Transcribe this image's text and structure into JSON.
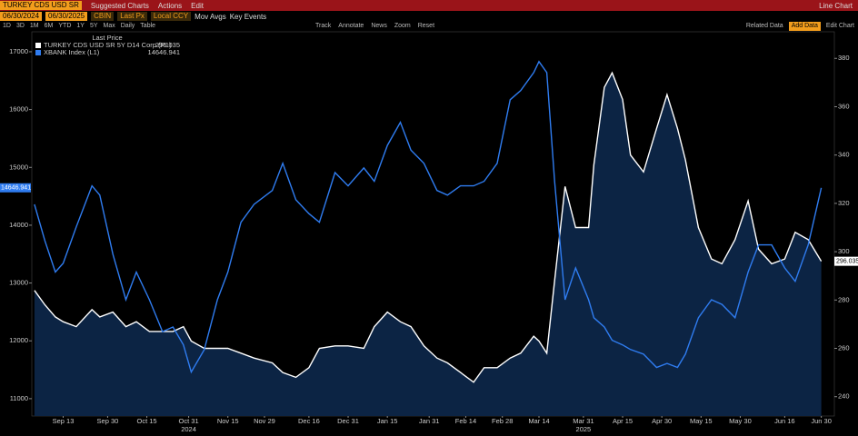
{
  "toolbar": {
    "ticker": "TURKEY CDS USD SR",
    "menus": [
      "Suggested Charts",
      "Actions",
      "Edit"
    ],
    "chart_kind": "Line Chart",
    "start_date": "06/30/2024",
    "end_date": "06/30/2025",
    "source": "CBIN",
    "field": "Last Px",
    "currency": "Local CCY",
    "options": [
      "Mov Avgs",
      "Key Events"
    ],
    "periods": [
      "1D",
      "3D",
      "1M",
      "6M",
      "YTD",
      "1Y",
      "5Y",
      "Max"
    ],
    "frequency": "Daily",
    "table": "Table",
    "tools": [
      "Track",
      "Annotate",
      "News",
      "Zoom"
    ],
    "reset": "Reset",
    "related": "Related Data",
    "add_data": "Add Data",
    "edit_chart": "Edit Chart"
  },
  "chart_data": {
    "type": "line",
    "legend_header": "Last Price",
    "grid": false,
    "x": [
      "2024-09-02",
      "2024-09-06",
      "2024-09-10",
      "2024-09-13",
      "2024-09-18",
      "2024-09-24",
      "2024-09-27",
      "2024-10-02",
      "2024-10-07",
      "2024-10-11",
      "2024-10-16",
      "2024-10-21",
      "2024-10-25",
      "2024-10-29",
      "2024-11-01",
      "2024-11-06",
      "2024-11-11",
      "2024-11-15",
      "2024-11-20",
      "2024-11-25",
      "2024-12-02",
      "2024-12-06",
      "2024-12-11",
      "2024-12-16",
      "2024-12-20",
      "2024-12-26",
      "2024-12-31",
      "2025-01-06",
      "2025-01-10",
      "2025-01-15",
      "2025-01-20",
      "2025-01-24",
      "2025-01-29",
      "2025-02-03",
      "2025-02-07",
      "2025-02-12",
      "2025-02-17",
      "2025-02-21",
      "2025-02-26",
      "2025-03-03",
      "2025-03-07",
      "2025-03-12",
      "2025-03-14",
      "2025-03-17",
      "2025-03-20",
      "2025-03-24",
      "2025-03-28",
      "2025-04-02",
      "2025-04-04",
      "2025-04-08",
      "2025-04-11",
      "2025-04-15",
      "2025-04-18",
      "2025-04-23",
      "2025-04-28",
      "2025-05-02",
      "2025-05-06",
      "2025-05-09",
      "2025-05-14",
      "2025-05-19",
      "2025-05-23",
      "2025-05-28",
      "2025-06-02",
      "2025-06-06",
      "2025-06-11",
      "2025-06-16",
      "2025-06-20",
      "2025-06-25",
      "2025-06-30"
    ],
    "xlim": [
      "2024-09-01",
      "2025-07-05"
    ],
    "xticks": [
      {
        "value": "2024-09-13",
        "label": "Sep 13"
      },
      {
        "value": "2024-09-30",
        "label": "Sep 30"
      },
      {
        "value": "2024-10-15",
        "label": "Oct 15"
      },
      {
        "value": "2024-10-31",
        "label": "Oct 31"
      },
      {
        "value": "2024-11-15",
        "label": "Nov 15"
      },
      {
        "value": "2024-11-29",
        "label": "Nov 29"
      },
      {
        "value": "2024-12-16",
        "label": "Dec 16"
      },
      {
        "value": "2024-12-31",
        "label": "Dec 31"
      },
      {
        "value": "2025-01-15",
        "label": "Jan 15"
      },
      {
        "value": "2025-01-31",
        "label": "Jan 31"
      },
      {
        "value": "2025-02-14",
        "label": "Feb 14"
      },
      {
        "value": "2025-02-28",
        "label": "Feb 28"
      },
      {
        "value": "2025-03-14",
        "label": "Mar 14"
      },
      {
        "value": "2025-03-31",
        "label": "Mar 31"
      },
      {
        "value": "2025-04-15",
        "label": "Apr 15"
      },
      {
        "value": "2025-04-30",
        "label": "Apr 30"
      },
      {
        "value": "2025-05-15",
        "label": "May 15"
      },
      {
        "value": "2025-05-30",
        "label": "May 30"
      },
      {
        "value": "2025-06-16",
        "label": "Jun 16"
      },
      {
        "value": "2025-06-30",
        "label": "Jun 30"
      }
    ],
    "year_labels": [
      {
        "value": "2024-10-31",
        "label": "2024"
      },
      {
        "value": "2025-03-31",
        "label": "2025"
      }
    ],
    "ylim": [
      10700,
      17345
    ],
    "yticks": [
      11000,
      12000,
      13000,
      14000,
      15000,
      16000,
      17000
    ],
    "y2lim": [
      232,
      391
    ],
    "y2ticks": [
      240,
      260,
      280,
      300,
      320,
      340,
      360,
      380
    ],
    "series": [
      {
        "name": "TURKEY CDS USD SR 5Y D14 Corp  (R1)",
        "axis": "y2",
        "color": "#ffffff",
        "area_color": "#0c2444",
        "values": [
          284,
          278,
          273,
          271,
          269,
          276,
          273,
          275,
          269,
          271,
          267,
          267,
          267,
          269,
          263,
          260,
          260,
          260,
          258,
          256,
          254,
          250,
          248,
          252,
          260,
          261,
          261,
          260,
          269,
          275,
          271,
          269,
          261,
          256,
          254,
          250,
          246,
          252,
          252,
          256,
          258,
          265,
          263,
          258,
          288,
          327,
          310,
          310,
          336,
          368,
          374,
          363,
          340,
          333,
          351,
          365,
          351,
          338,
          310,
          297,
          295,
          305,
          321,
          301,
          295,
          297,
          308,
          305,
          296.035
        ]
      },
      {
        "name": "XBANK Index  (L1)",
        "axis": "y",
        "color": "#2f7cf0",
        "values": [
          14360,
          13730,
          13190,
          13340,
          13970,
          14680,
          14520,
          13500,
          12710,
          13190,
          12710,
          12160,
          12240,
          11930,
          11460,
          11850,
          12710,
          13190,
          14050,
          14360,
          14600,
          15070,
          14440,
          14200,
          14050,
          14910,
          14680,
          14990,
          14760,
          15380,
          15780,
          15300,
          15070,
          14600,
          14520,
          14680,
          14680,
          14760,
          15070,
          16170,
          16330,
          16640,
          16830,
          16640,
          14760,
          12710,
          13260,
          12710,
          12400,
          12240,
          12010,
          11930,
          11850,
          11770,
          11540,
          11610,
          11540,
          11770,
          12400,
          12710,
          12630,
          12400,
          13190,
          13660,
          13660,
          13260,
          13030,
          13660,
          14646.941
        ]
      }
    ]
  }
}
